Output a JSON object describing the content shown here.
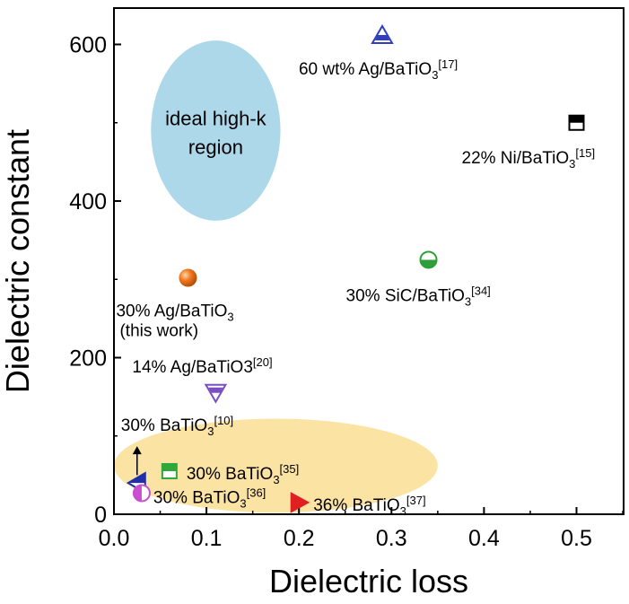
{
  "chart_data": {
    "type": "scatter",
    "xlabel": "Dielectric loss",
    "ylabel": "Dielectric constant",
    "xlim": [
      0.0,
      0.55
    ],
    "ylim": [
      0,
      650
    ],
    "xticks": [
      "0.0",
      "0.1",
      "0.2",
      "0.3",
      "0.4",
      "0.5"
    ],
    "yticks": [
      "0",
      "200",
      "400",
      "600"
    ],
    "grid": false,
    "regions": [
      {
        "label_lines": [
          "ideal high-k",
          "region"
        ],
        "color": "#add8ea",
        "center": [
          0.11,
          490
        ],
        "radius": [
          0.07,
          115
        ]
      },
      {
        "label_lines": [],
        "color": "#fbe3a4",
        "center": [
          0.175,
          62
        ],
        "radius": [
          0.175,
          60
        ]
      }
    ],
    "points": [
      {
        "x": 0.29,
        "y": 612,
        "marker": "triangle-up",
        "color": "#2f3fbf",
        "label": "60 wt% Ag/BaTiO",
        "sup": "[17]"
      },
      {
        "x": 0.5,
        "y": 500,
        "marker": "square-half",
        "color": "#000000",
        "label": "22% Ni/BaTiO",
        "sup": "[15]"
      },
      {
        "x": 0.34,
        "y": 325,
        "marker": "circle-half",
        "color": "#2e9e3a",
        "label": "30% SiC/BaTiO",
        "sup": "[34]"
      },
      {
        "x": 0.08,
        "y": 302,
        "marker": "sphere",
        "color": "#f07820",
        "label": "30% Ag/BaTiO",
        "sub3": true,
        "label2": "(this work)"
      },
      {
        "x": 0.11,
        "y": 155,
        "marker": "triangle-down",
        "color": "#7a4fc2",
        "label": "14% Ag/BaTiO3",
        "sup": "[20]"
      },
      {
        "x": 0.025,
        "y": 40,
        "marker": "triangle-left",
        "color": "#1f2fa8",
        "label": "30% BaTiO",
        "sup": "[10]"
      },
      {
        "x": 0.06,
        "y": 55,
        "marker": "square-half",
        "color": "#2ea83a",
        "label": "30% BaTiO",
        "sup": "[35]"
      },
      {
        "x": 0.03,
        "y": 27,
        "marker": "circle-half-v",
        "color": "#c94fd0",
        "label": "30% BaTiO",
        "sup": "[36]"
      },
      {
        "x": 0.2,
        "y": 15,
        "marker": "triangle-right",
        "color": "#e02020",
        "label": "36% BaTiO",
        "sup": "[37]"
      }
    ],
    "annotations": [
      {
        "type": "arrow",
        "from": [
          0.025,
          50
        ],
        "to": [
          0.025,
          87
        ]
      }
    ]
  }
}
